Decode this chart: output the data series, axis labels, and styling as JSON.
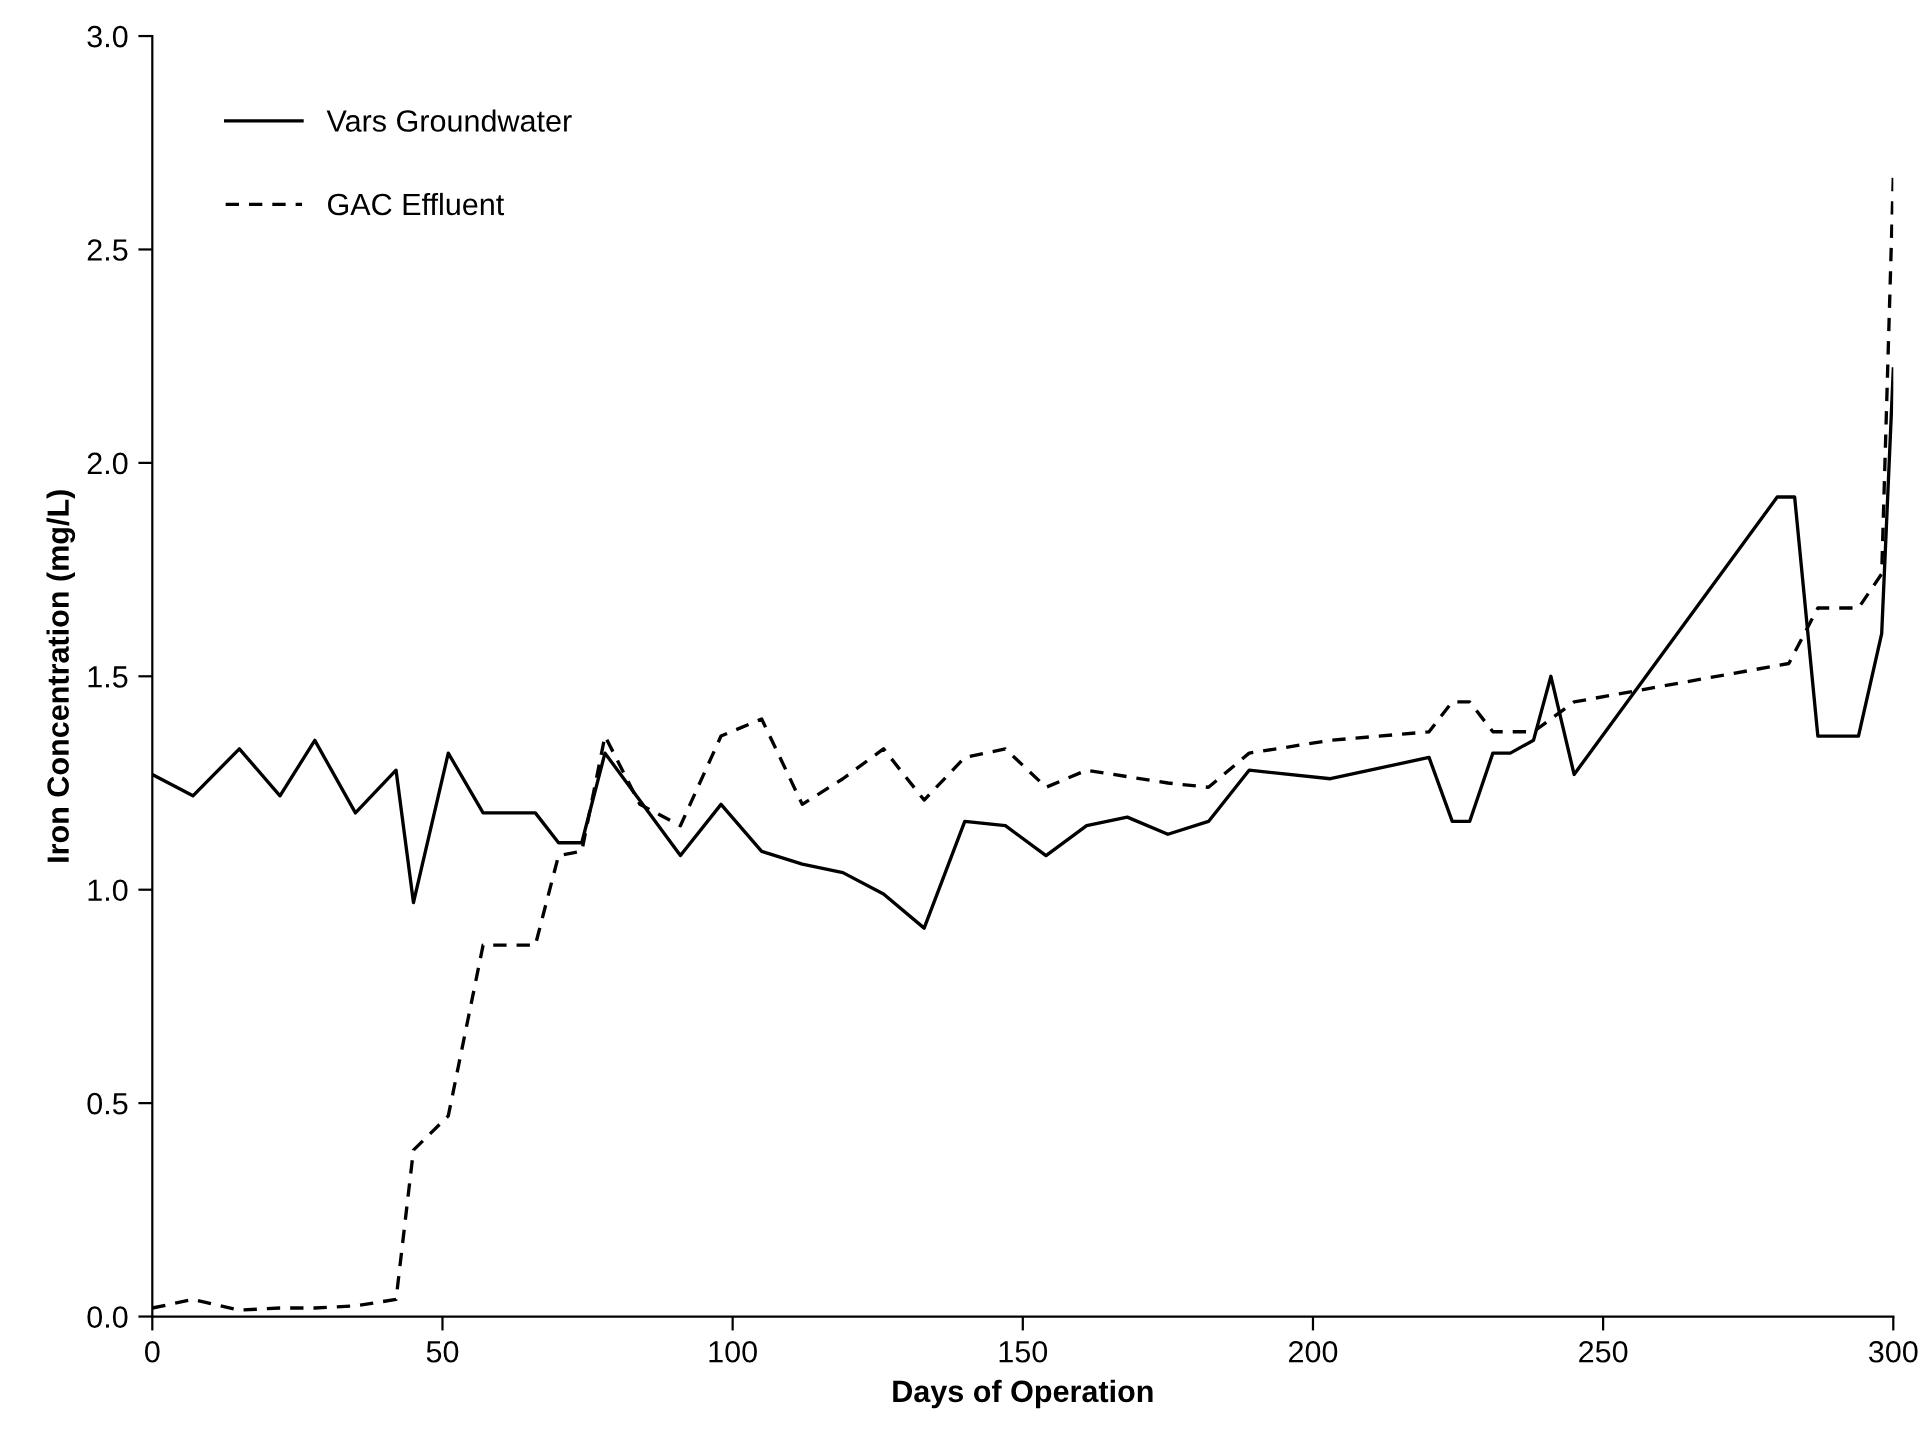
{
  "chart_data": {
    "type": "line",
    "xlabel": "Days of Operation",
    "ylabel": "Iron Concentration (mg/L)",
    "xlim": [
      0,
      300
    ],
    "xticks": [
      0,
      50,
      100,
      150,
      200,
      250,
      300
    ],
    "ylim": [
      0,
      3
    ],
    "yticks": [
      {
        "value": 0,
        "label": "0.0"
      },
      {
        "value": 0.5,
        "label": "0.5"
      },
      {
        "value": 1,
        "label": "1.0"
      },
      {
        "value": 1.5,
        "label": "1.5"
      },
      {
        "value": 2,
        "label": "2.0"
      },
      {
        "value": 2.5,
        "label": "2.5"
      },
      {
        "value": 3,
        "label": "3.0"
      }
    ],
    "grid": false,
    "legend": "top left",
    "marker": "none",
    "series": [
      {
        "name": "Vars Groundwater",
        "color": "#000000",
        "line_style": "solid",
        "x": [
          0,
          7,
          15,
          22,
          28,
          35,
          42,
          45,
          51,
          57,
          66,
          70,
          74,
          78,
          91,
          98,
          105,
          112,
          119,
          126,
          133,
          140,
          147,
          154,
          161,
          168,
          175,
          182,
          189,
          203,
          220,
          224,
          227,
          231,
          234,
          238,
          241,
          245,
          280,
          283,
          287,
          294,
          298,
          300
        ],
        "values": [
          1.27,
          1.22,
          1.33,
          1.22,
          1.35,
          1.18,
          1.28,
          0.97,
          1.32,
          1.18,
          1.18,
          1.11,
          1.11,
          1.32,
          1.08,
          1.2,
          1.09,
          1.06,
          1.04,
          0.99,
          0.91,
          1.16,
          1.15,
          1.08,
          1.15,
          1.17,
          1.13,
          1.16,
          1.28,
          1.26,
          1.31,
          1.16,
          1.16,
          1.32,
          1.32,
          1.35,
          1.5,
          1.27,
          1.92,
          1.92,
          1.36,
          1.36,
          1.6,
          2.22
        ]
      },
      {
        "name": "GAC Effluent",
        "color": "#000000",
        "line_style": "dashed",
        "x": [
          0,
          7,
          15,
          22,
          28,
          35,
          42,
          45,
          51,
          57,
          66,
          70,
          74,
          78,
          84,
          91,
          98,
          105,
          112,
          119,
          126,
          133,
          140,
          147,
          154,
          161,
          175,
          182,
          189,
          203,
          220,
          224,
          227,
          231,
          238,
          245,
          282,
          287,
          294,
          298,
          300
        ],
        "values": [
          0.02,
          0.04,
          0.015,
          0.02,
          0.02,
          0.025,
          0.04,
          0.39,
          0.47,
          0.87,
          0.87,
          1.08,
          1.09,
          1.36,
          1.2,
          1.15,
          1.36,
          1.4,
          1.2,
          1.26,
          1.33,
          1.21,
          1.31,
          1.33,
          1.24,
          1.28,
          1.25,
          1.24,
          1.32,
          1.35,
          1.37,
          1.44,
          1.44,
          1.37,
          1.37,
          1.44,
          1.53,
          1.66,
          1.66,
          1.74,
          2.67
        ]
      }
    ]
  }
}
